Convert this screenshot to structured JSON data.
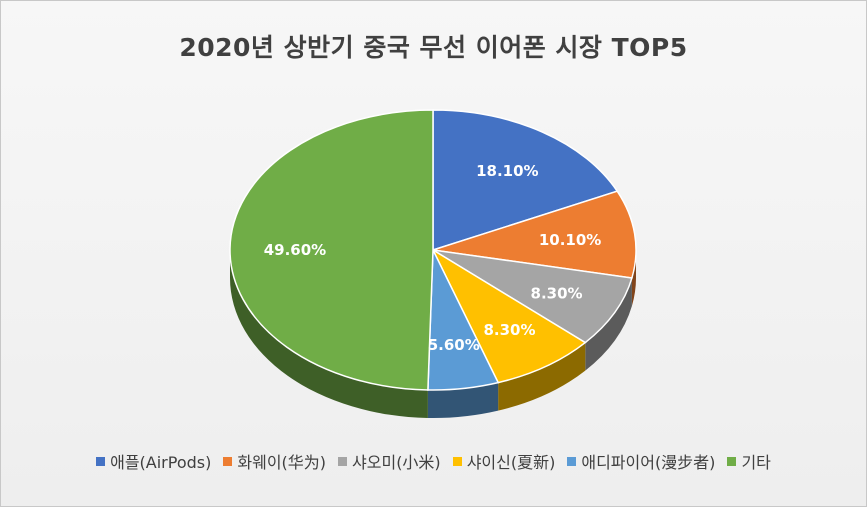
{
  "chart_data": {
    "type": "pie",
    "title": "2020년 상반기 중국 무선 이어폰 시장 TOP5",
    "slices": [
      {
        "name": "애플(AirPods)",
        "value": 18.1,
        "label": "18.10%",
        "color": "#4472c4"
      },
      {
        "name": "화웨이(华为)",
        "value": 10.1,
        "label": "10.10%",
        "color": "#ed7d31"
      },
      {
        "name": "샤오미(小米)",
        "value": 8.3,
        "label": "8.30%",
        "color": "#a5a5a5"
      },
      {
        "name": "샤이신(夏新)",
        "value": 8.3,
        "label": "8.30%",
        "color": "#ffc000"
      },
      {
        "name": "애디파이어(漫步者)",
        "value": 5.6,
        "label": "5.60%",
        "color": "#5b9bd5"
      },
      {
        "name": "기타",
        "value": 49.6,
        "label": "49.60%",
        "color": "#70ad47"
      }
    ],
    "legend_position": "bottom"
  }
}
